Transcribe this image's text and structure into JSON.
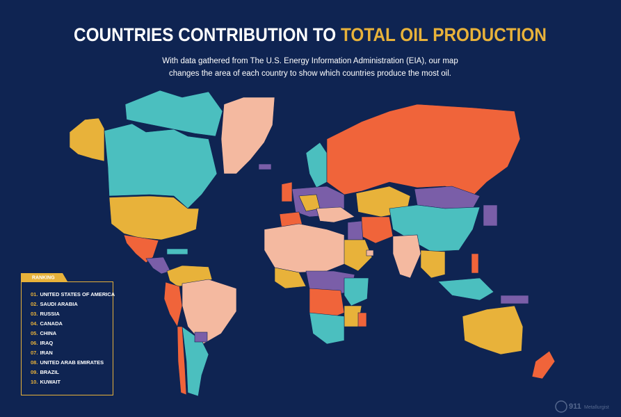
{
  "header": {
    "title_part1": "COUNTRIES CONTRIBUTION TO",
    "title_part2": "TOTAL OIL PRODUCTION",
    "subtitle_lines": [
      "With data gathered from The U.S. Energy Information Administration (EIA), our map",
      "changes the area of each country to show which countries produce the most oil."
    ]
  },
  "ranking": {
    "label": "RANKING",
    "items": [
      {
        "rank": "01.",
        "name": "UNITED STATES OF AMERICA"
      },
      {
        "rank": "02.",
        "name": "SAUDI ARABIA"
      },
      {
        "rank": "03.",
        "name": "RUSSIA"
      },
      {
        "rank": "04.",
        "name": "CANADA"
      },
      {
        "rank": "05.",
        "name": "CHINA"
      },
      {
        "rank": "06.",
        "name": "IRAQ"
      },
      {
        "rank": "07.",
        "name": "IRAN"
      },
      {
        "rank": "08.",
        "name": "UNITED ARAB EMIRATES"
      },
      {
        "rank": "09.",
        "name": "BRAZIL"
      },
      {
        "rank": "10.",
        "name": "KUWAIT"
      }
    ]
  },
  "logo": {
    "number": "911",
    "text": "Metallurgist"
  }
}
